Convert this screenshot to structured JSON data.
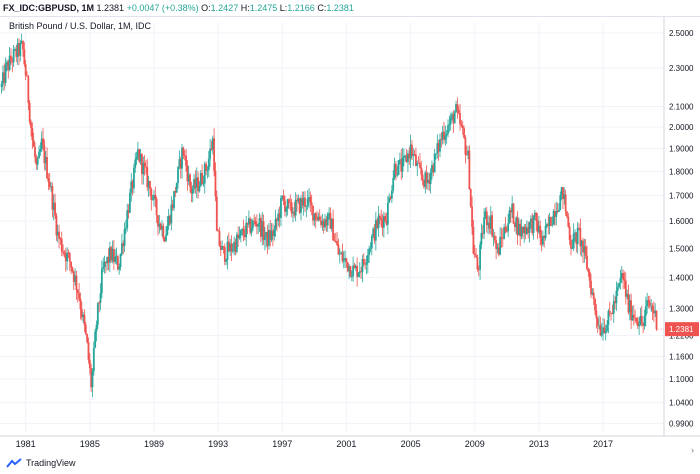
{
  "header": {
    "symbol": "FX_IDC:GBPUSD, 1M",
    "last": "1.2381",
    "change": "+0.0047 (+0.38%)",
    "o_label": "O:",
    "o_value": "1.2427",
    "h_label": "H:",
    "h_value": "1.2475",
    "l_label": "L:",
    "l_value": "1.2166",
    "c_label": "C:",
    "c_value": "1.2381"
  },
  "subtitle": "British Pound / U.S. Dollar, 1M, IDC",
  "footer": {
    "brand": "TradingView"
  },
  "colors": {
    "up": "#26a69a",
    "down": "#ef5350",
    "grid": "#f0f3fa",
    "axis_text": "#131722",
    "price_tag": "#ef5350"
  },
  "chart_data": {
    "type": "candlestick",
    "y_scale": "log",
    "ylim": [
      0.97,
      2.56
    ],
    "xlim": [
      1979.4,
      2020.8
    ],
    "y_ticks": [
      "2.5000",
      "2.3000",
      "2.1000",
      "2.0000",
      "1.9000",
      "1.8000",
      "1.7000",
      "1.6000",
      "1.5000",
      "1.4000",
      "1.3000",
      "1.2200",
      "1.1600",
      "1.1000",
      "1.0400",
      "0.9900"
    ],
    "x_ticks": [
      "1981",
      "1985",
      "1989",
      "1993",
      "1997",
      "2001",
      "2005",
      "2009",
      "2013",
      "2017"
    ],
    "last_price_label": "1.2381",
    "last_price": 1.2381,
    "price_path": [
      [
        1979.5,
        2.2
      ],
      [
        1979.8,
        2.3
      ],
      [
        1980.2,
        2.36
      ],
      [
        1980.8,
        2.42
      ],
      [
        1981.1,
        2.2
      ],
      [
        1981.4,
        1.95
      ],
      [
        1981.7,
        1.8
      ],
      [
        1982.0,
        1.92
      ],
      [
        1982.5,
        1.75
      ],
      [
        1983.0,
        1.55
      ],
      [
        1983.3,
        1.5
      ],
      [
        1983.8,
        1.45
      ],
      [
        1984.3,
        1.35
      ],
      [
        1984.8,
        1.2
      ],
      [
        1985.1,
        1.08
      ],
      [
        1985.4,
        1.25
      ],
      [
        1985.8,
        1.42
      ],
      [
        1986.3,
        1.48
      ],
      [
        1986.8,
        1.44
      ],
      [
        1987.3,
        1.62
      ],
      [
        1987.8,
        1.8
      ],
      [
        1988.0,
        1.88
      ],
      [
        1988.4,
        1.8
      ],
      [
        1988.8,
        1.72
      ],
      [
        1989.3,
        1.6
      ],
      [
        1989.7,
        1.55
      ],
      [
        1990.2,
        1.68
      ],
      [
        1990.8,
        1.9
      ],
      [
        1991.3,
        1.72
      ],
      [
        1991.8,
        1.75
      ],
      [
        1992.3,
        1.82
      ],
      [
        1992.7,
        1.95
      ],
      [
        1992.9,
        1.55
      ],
      [
        1993.3,
        1.48
      ],
      [
        1993.8,
        1.5
      ],
      [
        1994.5,
        1.55
      ],
      [
        1995.0,
        1.58
      ],
      [
        1995.5,
        1.6
      ],
      [
        1996.0,
        1.53
      ],
      [
        1996.5,
        1.56
      ],
      [
        1997.0,
        1.68
      ],
      [
        1997.5,
        1.64
      ],
      [
        1998.0,
        1.66
      ],
      [
        1998.5,
        1.68
      ],
      [
        1999.0,
        1.63
      ],
      [
        1999.5,
        1.6
      ],
      [
        2000.0,
        1.6
      ],
      [
        2000.5,
        1.48
      ],
      [
        2001.0,
        1.45
      ],
      [
        2001.5,
        1.42
      ],
      [
        2002.0,
        1.44
      ],
      [
        2002.5,
        1.52
      ],
      [
        2003.0,
        1.6
      ],
      [
        2003.5,
        1.62
      ],
      [
        2004.0,
        1.82
      ],
      [
        2004.5,
        1.82
      ],
      [
        2005.0,
        1.9
      ],
      [
        2005.5,
        1.8
      ],
      [
        2006.0,
        1.75
      ],
      [
        2006.5,
        1.85
      ],
      [
        2007.0,
        1.97
      ],
      [
        2007.5,
        2.02
      ],
      [
        2007.8,
        2.08
      ],
      [
        2008.2,
        1.98
      ],
      [
        2008.6,
        1.85
      ],
      [
        2008.9,
        1.5
      ],
      [
        2009.2,
        1.42
      ],
      [
        2009.6,
        1.62
      ],
      [
        2010.0,
        1.6
      ],
      [
        2010.4,
        1.48
      ],
      [
        2010.8,
        1.56
      ],
      [
        2011.3,
        1.64
      ],
      [
        2011.8,
        1.56
      ],
      [
        2012.3,
        1.58
      ],
      [
        2012.8,
        1.6
      ],
      [
        2013.2,
        1.52
      ],
      [
        2013.6,
        1.58
      ],
      [
        2014.0,
        1.65
      ],
      [
        2014.5,
        1.71
      ],
      [
        2015.0,
        1.52
      ],
      [
        2015.5,
        1.55
      ],
      [
        2016.0,
        1.44
      ],
      [
        2016.5,
        1.3
      ],
      [
        2016.8,
        1.24
      ],
      [
        2017.3,
        1.26
      ],
      [
        2017.8,
        1.33
      ],
      [
        2018.2,
        1.41
      ],
      [
        2018.6,
        1.3
      ],
      [
        2019.0,
        1.28
      ],
      [
        2019.5,
        1.25
      ],
      [
        2019.8,
        1.32
      ],
      [
        2020.2,
        1.29
      ],
      [
        2020.4,
        1.2381
      ]
    ]
  }
}
